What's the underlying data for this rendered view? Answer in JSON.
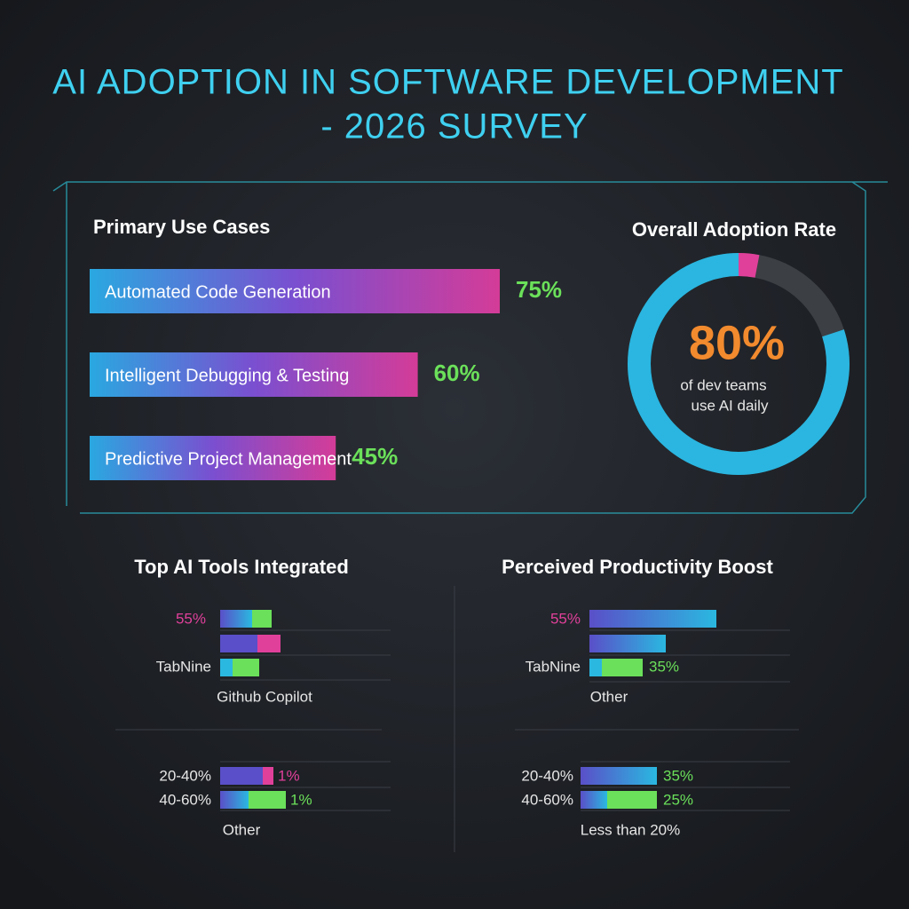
{
  "title": [
    "AI ADOPTION IN SOFTWARE DEVELOPMENT",
    "- 2026 SURVEY"
  ],
  "chart_data": [
    {
      "type": "bar",
      "orientation": "horizontal",
      "title": "Primary Use Cases",
      "categories": [
        "Automated Code Generation",
        "Intelligent Debugging & Testing",
        "Predictive Project Management"
      ],
      "values": [
        75,
        60,
        45
      ],
      "value_labels": [
        "75%",
        "60%",
        "45%"
      ],
      "xlim": [
        0,
        100
      ]
    },
    {
      "type": "donut",
      "title": "Overall Adoption Rate",
      "value": 80,
      "value_label": "80%",
      "caption": [
        "of dev teams",
        "use AI daily"
      ],
      "color": "#2ab6e0",
      "ylim": [
        0,
        100
      ]
    }
  ],
  "panels": [
    {
      "title": "Top AI Tools Integrated",
      "labels": [
        "55%",
        "TabNine",
        "Github Copilot",
        "20-40%",
        "1%",
        "40-60%",
        "1%",
        "Other"
      ]
    },
    {
      "title": "Perceived Productivity Boost",
      "labels": [
        "55%",
        "TabNine",
        "35%",
        "Other",
        "20-40%",
        "35%",
        "40-60%",
        "25%",
        "Less than 20%"
      ]
    }
  ]
}
